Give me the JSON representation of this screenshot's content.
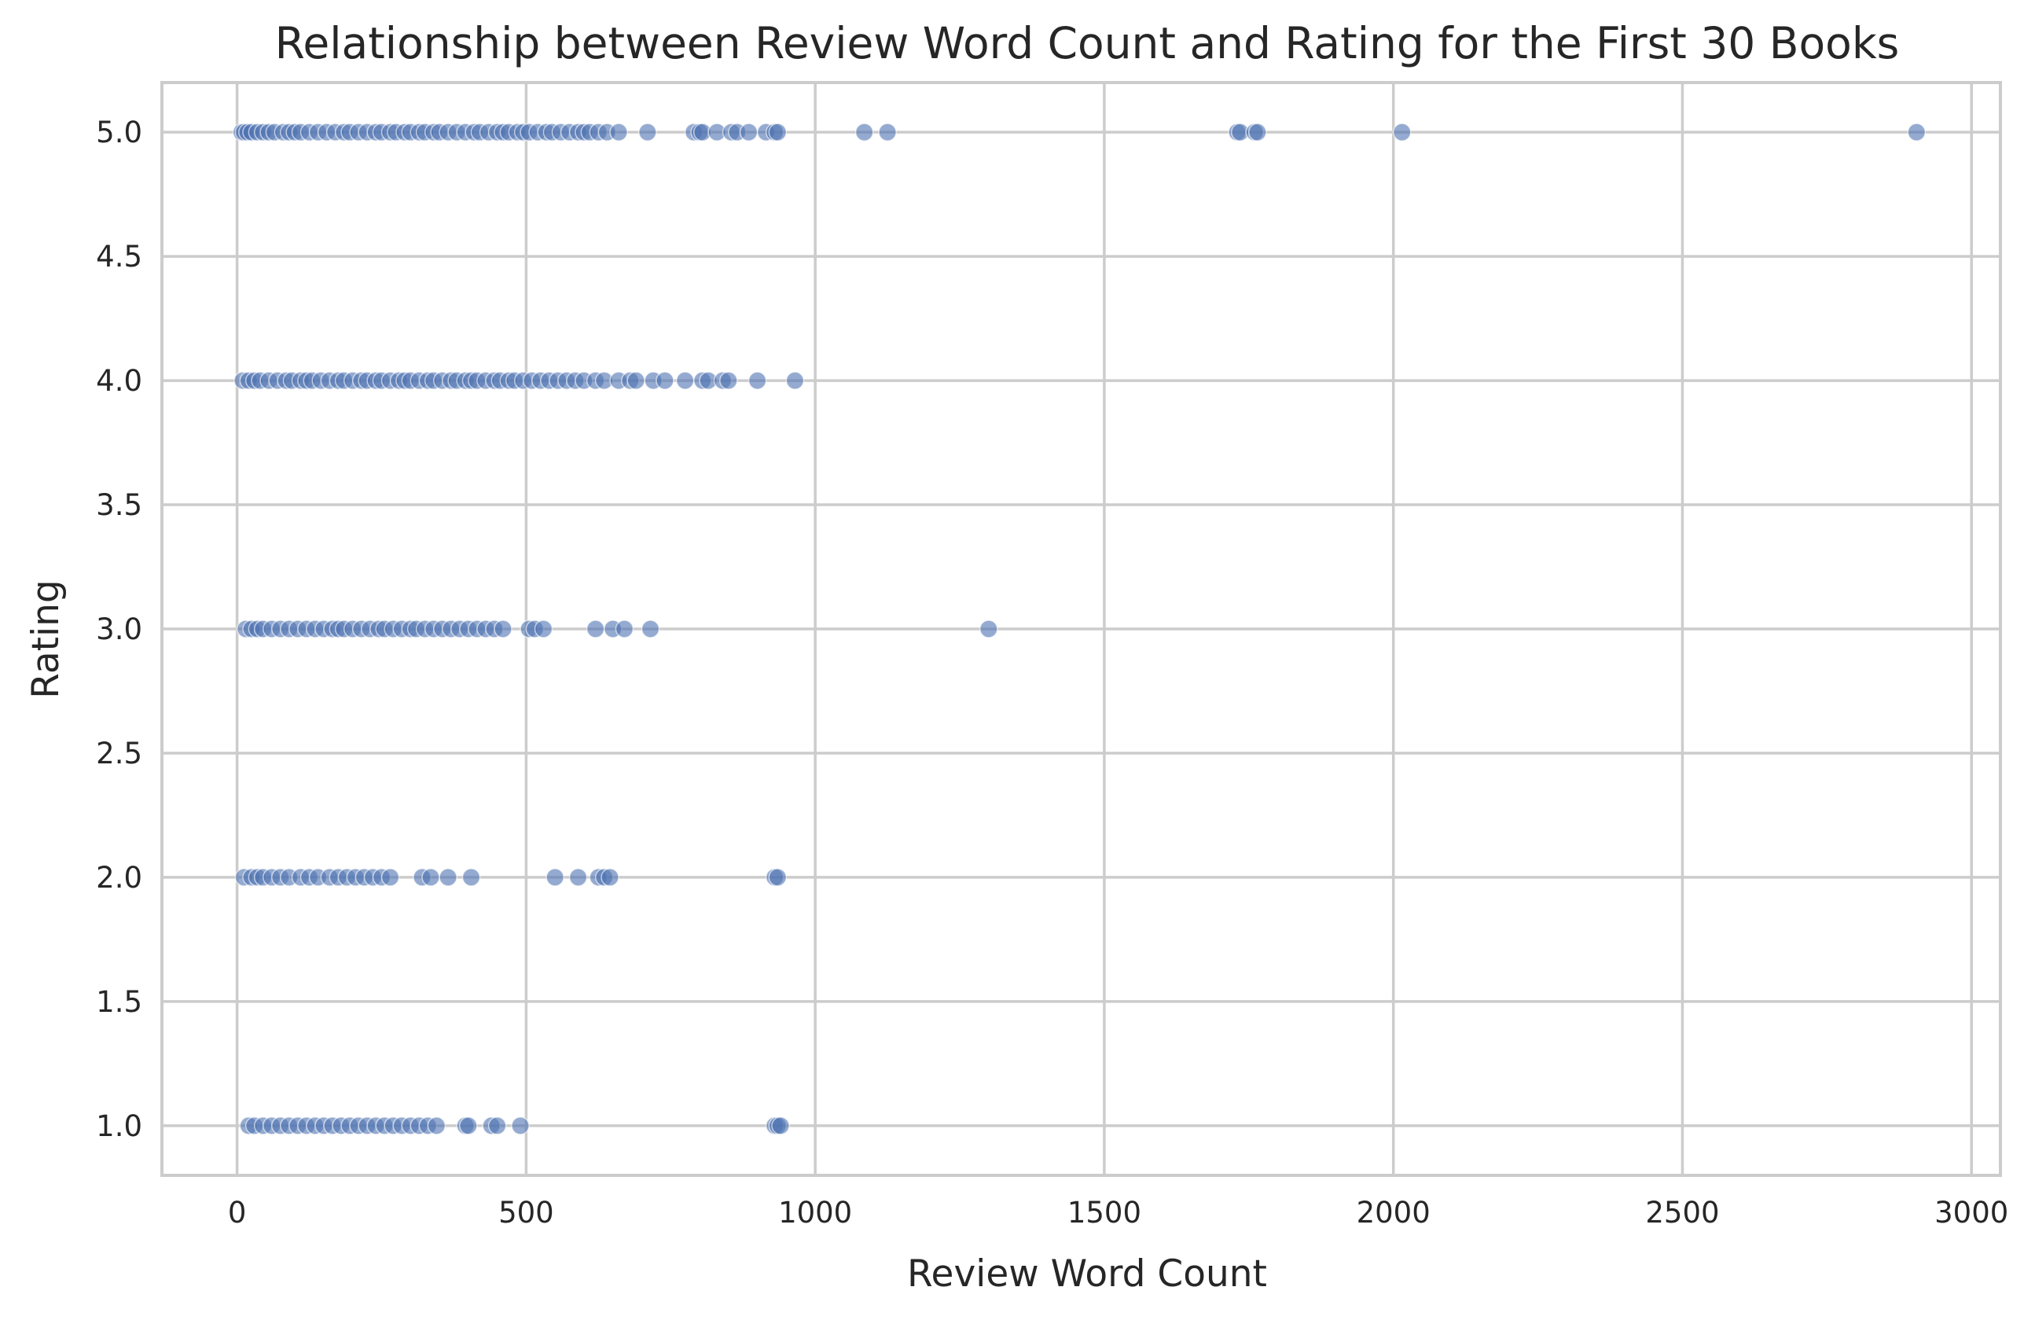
{
  "chart_data": {
    "type": "scatter",
    "title": "Relationship between Review Word Count and Rating for the First 30 Books",
    "xlabel": "Review Word Count",
    "ylabel": "Rating",
    "xlim": [
      -130,
      3050
    ],
    "ylim": [
      0.8,
      5.2
    ],
    "xticks": [
      0,
      500,
      1000,
      1500,
      2000,
      2500,
      3000
    ],
    "xtick_labels": [
      "0",
      "500",
      "1000",
      "1500",
      "2000",
      "2500",
      "3000"
    ],
    "yticks": [
      1.0,
      1.5,
      2.0,
      2.5,
      3.0,
      3.5,
      4.0,
      4.5,
      5.0
    ],
    "ytick_labels": [
      "1.0",
      "1.5",
      "2.0",
      "2.5",
      "3.0",
      "3.5",
      "4.0",
      "4.5",
      "5.0"
    ],
    "grid": true,
    "marker_color": "#4c72b0",
    "series": [
      {
        "points": [
          [
            8,
            5
          ],
          [
            12,
            5
          ],
          [
            18,
            5
          ],
          [
            25,
            5
          ],
          [
            35,
            5
          ],
          [
            45,
            5
          ],
          [
            55,
            5
          ],
          [
            65,
            5
          ],
          [
            80,
            5
          ],
          [
            90,
            5
          ],
          [
            100,
            5
          ],
          [
            110,
            5
          ],
          [
            125,
            5
          ],
          [
            140,
            5
          ],
          [
            155,
            5
          ],
          [
            170,
            5
          ],
          [
            185,
            5
          ],
          [
            195,
            5
          ],
          [
            210,
            5
          ],
          [
            225,
            5
          ],
          [
            240,
            5
          ],
          [
            250,
            5
          ],
          [
            265,
            5
          ],
          [
            275,
            5
          ],
          [
            290,
            5
          ],
          [
            300,
            5
          ],
          [
            315,
            5
          ],
          [
            325,
            5
          ],
          [
            340,
            5
          ],
          [
            350,
            5
          ],
          [
            365,
            5
          ],
          [
            380,
            5
          ],
          [
            395,
            5
          ],
          [
            410,
            5
          ],
          [
            420,
            5
          ],
          [
            435,
            5
          ],
          [
            450,
            5
          ],
          [
            460,
            5
          ],
          [
            470,
            5
          ],
          [
            485,
            5
          ],
          [
            495,
            5
          ],
          [
            505,
            5
          ],
          [
            520,
            5
          ],
          [
            535,
            5
          ],
          [
            545,
            5
          ],
          [
            560,
            5
          ],
          [
            575,
            5
          ],
          [
            590,
            5
          ],
          [
            600,
            5
          ],
          [
            610,
            5
          ],
          [
            625,
            5
          ],
          [
            640,
            5
          ],
          [
            660,
            5
          ],
          [
            710,
            5
          ],
          [
            790,
            5
          ],
          [
            800,
            5
          ],
          [
            805,
            5
          ],
          [
            830,
            5
          ],
          [
            855,
            5
          ],
          [
            865,
            5
          ],
          [
            885,
            5
          ],
          [
            915,
            5
          ],
          [
            930,
            5
          ],
          [
            935,
            5
          ],
          [
            1085,
            5
          ],
          [
            1125,
            5
          ],
          [
            1730,
            5
          ],
          [
            1735,
            5
          ],
          [
            1760,
            5
          ],
          [
            1765,
            5
          ],
          [
            2015,
            5
          ],
          [
            2905,
            5
          ],
          [
            10,
            4
          ],
          [
            20,
            4
          ],
          [
            30,
            4
          ],
          [
            40,
            4
          ],
          [
            55,
            4
          ],
          [
            70,
            4
          ],
          [
            85,
            4
          ],
          [
            95,
            4
          ],
          [
            110,
            4
          ],
          [
            120,
            4
          ],
          [
            130,
            4
          ],
          [
            145,
            4
          ],
          [
            160,
            4
          ],
          [
            175,
            4
          ],
          [
            185,
            4
          ],
          [
            200,
            4
          ],
          [
            215,
            4
          ],
          [
            225,
            4
          ],
          [
            240,
            4
          ],
          [
            250,
            4
          ],
          [
            265,
            4
          ],
          [
            280,
            4
          ],
          [
            290,
            4
          ],
          [
            300,
            4
          ],
          [
            315,
            4
          ],
          [
            330,
            4
          ],
          [
            340,
            4
          ],
          [
            355,
            4
          ],
          [
            370,
            4
          ],
          [
            380,
            4
          ],
          [
            395,
            4
          ],
          [
            405,
            4
          ],
          [
            415,
            4
          ],
          [
            430,
            4
          ],
          [
            445,
            4
          ],
          [
            455,
            4
          ],
          [
            470,
            4
          ],
          [
            480,
            4
          ],
          [
            495,
            4
          ],
          [
            510,
            4
          ],
          [
            525,
            4
          ],
          [
            540,
            4
          ],
          [
            555,
            4
          ],
          [
            570,
            4
          ],
          [
            585,
            4
          ],
          [
            600,
            4
          ],
          [
            620,
            4
          ],
          [
            635,
            4
          ],
          [
            660,
            4
          ],
          [
            680,
            4
          ],
          [
            690,
            4
          ],
          [
            720,
            4
          ],
          [
            740,
            4
          ],
          [
            775,
            4
          ],
          [
            805,
            4
          ],
          [
            815,
            4
          ],
          [
            840,
            4
          ],
          [
            850,
            4
          ],
          [
            900,
            4
          ],
          [
            965,
            4
          ],
          [
            15,
            3
          ],
          [
            25,
            3
          ],
          [
            35,
            3
          ],
          [
            45,
            3
          ],
          [
            60,
            3
          ],
          [
            75,
            3
          ],
          [
            90,
            3
          ],
          [
            105,
            3
          ],
          [
            120,
            3
          ],
          [
            135,
            3
          ],
          [
            150,
            3
          ],
          [
            165,
            3
          ],
          [
            175,
            3
          ],
          [
            185,
            3
          ],
          [
            200,
            3
          ],
          [
            215,
            3
          ],
          [
            230,
            3
          ],
          [
            245,
            3
          ],
          [
            255,
            3
          ],
          [
            270,
            3
          ],
          [
            285,
            3
          ],
          [
            300,
            3
          ],
          [
            310,
            3
          ],
          [
            325,
            3
          ],
          [
            340,
            3
          ],
          [
            355,
            3
          ],
          [
            370,
            3
          ],
          [
            385,
            3
          ],
          [
            400,
            3
          ],
          [
            415,
            3
          ],
          [
            430,
            3
          ],
          [
            445,
            3
          ],
          [
            460,
            3
          ],
          [
            505,
            3
          ],
          [
            515,
            3
          ],
          [
            530,
            3
          ],
          [
            620,
            3
          ],
          [
            650,
            3
          ],
          [
            670,
            3
          ],
          [
            715,
            3
          ],
          [
            1300,
            3
          ],
          [
            12,
            2
          ],
          [
            25,
            2
          ],
          [
            35,
            2
          ],
          [
            45,
            2
          ],
          [
            60,
            2
          ],
          [
            75,
            2
          ],
          [
            90,
            2
          ],
          [
            110,
            2
          ],
          [
            125,
            2
          ],
          [
            140,
            2
          ],
          [
            160,
            2
          ],
          [
            175,
            2
          ],
          [
            190,
            2
          ],
          [
            205,
            2
          ],
          [
            220,
            2
          ],
          [
            235,
            2
          ],
          [
            250,
            2
          ],
          [
            265,
            2
          ],
          [
            320,
            2
          ],
          [
            335,
            2
          ],
          [
            365,
            2
          ],
          [
            405,
            2
          ],
          [
            550,
            2
          ],
          [
            590,
            2
          ],
          [
            625,
            2
          ],
          [
            635,
            2
          ],
          [
            645,
            2
          ],
          [
            930,
            2
          ],
          [
            935,
            2
          ],
          [
            20,
            1
          ],
          [
            30,
            1
          ],
          [
            45,
            1
          ],
          [
            60,
            1
          ],
          [
            75,
            1
          ],
          [
            90,
            1
          ],
          [
            105,
            1
          ],
          [
            120,
            1
          ],
          [
            135,
            1
          ],
          [
            150,
            1
          ],
          [
            165,
            1
          ],
          [
            180,
            1
          ],
          [
            195,
            1
          ],
          [
            210,
            1
          ],
          [
            225,
            1
          ],
          [
            240,
            1
          ],
          [
            255,
            1
          ],
          [
            270,
            1
          ],
          [
            285,
            1
          ],
          [
            300,
            1
          ],
          [
            315,
            1
          ],
          [
            330,
            1
          ],
          [
            345,
            1
          ],
          [
            395,
            1
          ],
          [
            400,
            1
          ],
          [
            440,
            1
          ],
          [
            450,
            1
          ],
          [
            490,
            1
          ],
          [
            930,
            1
          ],
          [
            935,
            1
          ],
          [
            940,
            1
          ]
        ]
      }
    ]
  }
}
